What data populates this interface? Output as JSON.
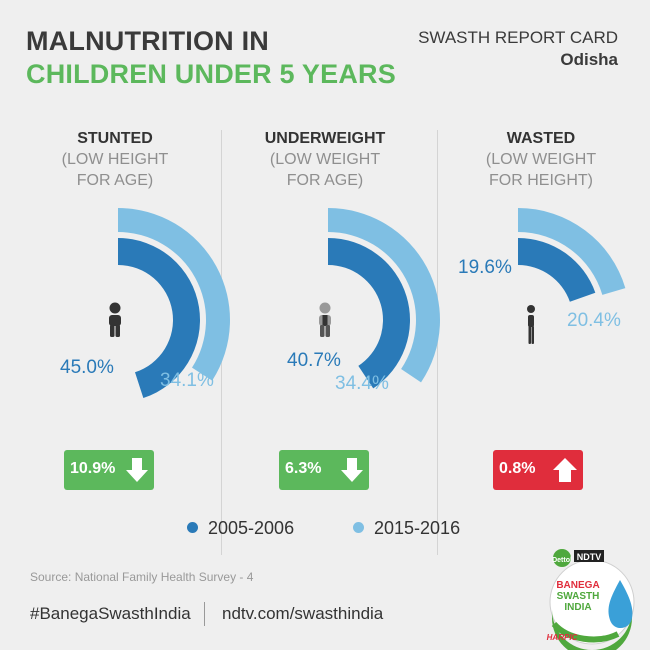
{
  "header": {
    "title_line1": "MALNUTRITION IN",
    "title_line2": "CHILDREN UNDER 5 YEARS",
    "report": "SWASTH REPORT CARD",
    "state": "Odisha"
  },
  "colors": {
    "dark": "#2a7ab8",
    "light": "#7fbfe3",
    "decrease": "#5cb85c",
    "increase": "#e02d3c"
  },
  "chart_data": [
    {
      "type": "radial-bar",
      "title": "STUNTED",
      "subtitle": [
        "(LOW HEIGHT",
        "FOR AGE)"
      ],
      "series": [
        {
          "name": "2005-2006",
          "value": 45.0,
          "label": "45.0%"
        },
        {
          "name": "2015-2016",
          "value": 34.1,
          "label": "34.1%"
        }
      ],
      "change": {
        "label": "10.9%",
        "direction": "down"
      },
      "icon": "child-icon"
    },
    {
      "type": "radial-bar",
      "title": "UNDERWEIGHT",
      "subtitle": [
        "(LOW WEIGHT",
        "FOR AGE)"
      ],
      "series": [
        {
          "name": "2005-2006",
          "value": 40.7,
          "label": "40.7%"
        },
        {
          "name": "2015-2016",
          "value": 34.4,
          "label": "34.4%"
        }
      ],
      "change": {
        "label": "6.3%",
        "direction": "down"
      },
      "icon": "child-icon"
    },
    {
      "type": "radial-bar",
      "title": "WASTED",
      "subtitle": [
        "(LOW WEIGHT",
        "FOR HEIGHT)"
      ],
      "series": [
        {
          "name": "2005-2006",
          "value": 19.6,
          "label": "19.6%"
        },
        {
          "name": "2015-2016",
          "value": 20.4,
          "label": "20.4%"
        }
      ],
      "change": {
        "label": "0.8%",
        "direction": "up"
      },
      "icon": "thin-child-icon"
    }
  ],
  "legend": [
    {
      "label": "2005-2006"
    },
    {
      "label": "2015-2016"
    }
  ],
  "source": "Source: National Family Health Survey - 4",
  "footer": {
    "hashtag": "#BanegaSwasthIndia",
    "url": "ndtv.com/swasthindia"
  },
  "logo": {
    "brand1": "Dettol",
    "brand2": "NDTV",
    "line1": "BANEGA",
    "line2": "SWASTH",
    "line3": "INDIA",
    "brand3": "HARPIC"
  }
}
